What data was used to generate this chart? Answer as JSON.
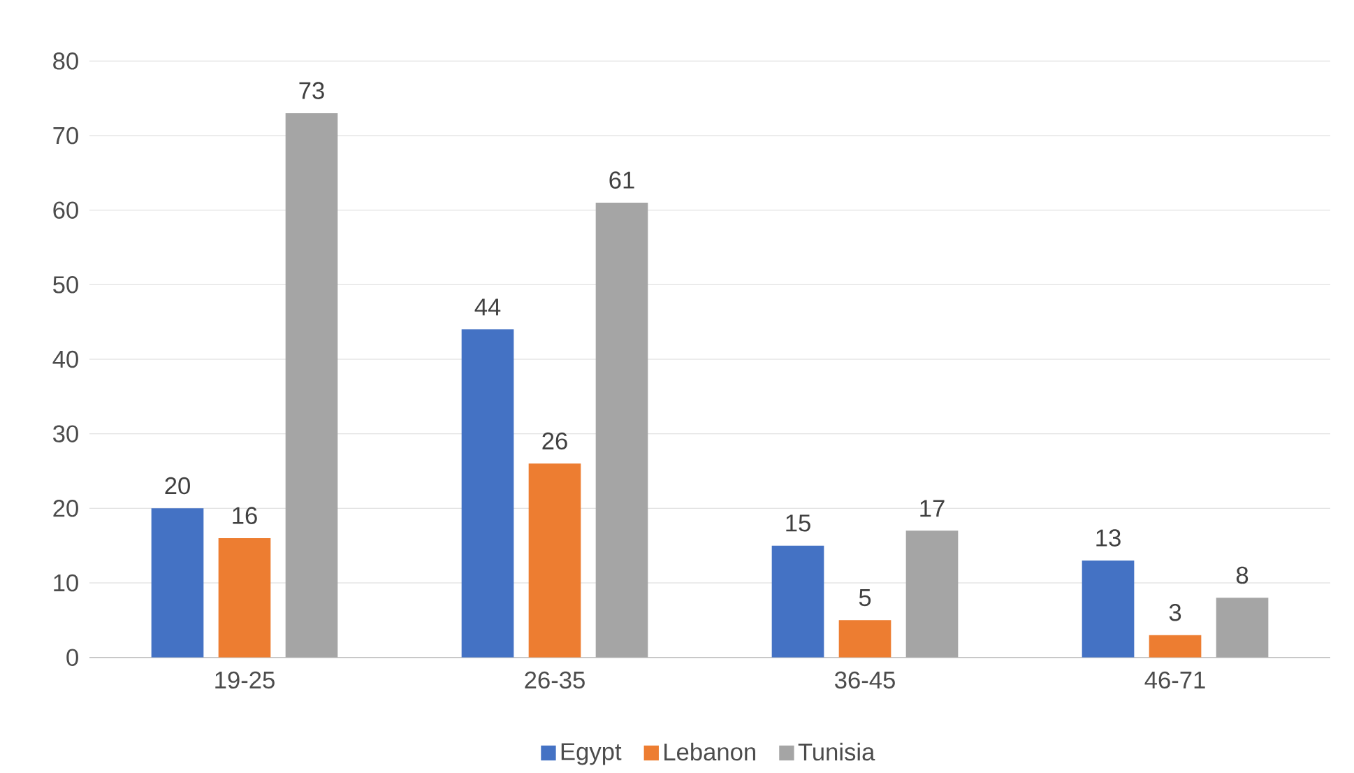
{
  "chart_data": {
    "type": "bar",
    "categories": [
      "19-25",
      "26-35",
      "36-45",
      "46-71"
    ],
    "series": [
      {
        "name": "Egypt",
        "color": "#4472c4",
        "values": [
          20,
          44,
          15,
          13
        ]
      },
      {
        "name": "Lebanon",
        "color": "#ed7d31",
        "values": [
          16,
          26,
          5,
          3
        ]
      },
      {
        "name": "Tunisia",
        "color": "#a5a5a5",
        "values": [
          73,
          61,
          17,
          8
        ]
      }
    ],
    "ylim": [
      0,
      80
    ],
    "yticks": [
      0,
      10,
      20,
      30,
      40,
      50,
      60,
      70,
      80
    ],
    "grid": "y",
    "legend": "bottom",
    "data_labels": true
  }
}
